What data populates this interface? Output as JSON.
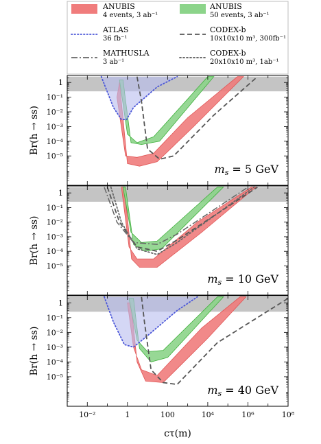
{
  "chart_data": [
    {
      "type": "line",
      "panel": "top",
      "annotation": "m_s = 5 GeV",
      "annotation_parts": {
        "var": "m",
        "sub": "s",
        "rest": " = 5 GeV"
      },
      "ylabel": "Br(h → ss)",
      "xscale": "log",
      "yscale": "log",
      "xlim": [
        0.001,
        100000000
      ],
      "ylim": [
        1e-07,
        3
      ],
      "excluded_band": [
        0.25,
        2.5
      ],
      "series": [
        {
          "name": "ANUBIS 4 events, 3 ab⁻¹",
          "kind": "band",
          "upper": [
            [
              0.3,
              0.1
            ],
            [
              0.8,
              1e-05
            ],
            [
              3,
              8e-06
            ],
            [
              20,
              1.5e-05
            ],
            [
              1000,
              0.004
            ],
            [
              300000,
              2.5
            ]
          ],
          "lower": [
            [
              0.4,
              1
            ],
            [
              1,
              3e-06
            ],
            [
              4,
              2e-06
            ],
            [
              30,
              4e-06
            ],
            [
              2000,
              0.001
            ],
            [
              600000,
              2.5
            ]
          ]
        },
        {
          "name": "ANUBIS 50 events, 3 ab⁻¹",
          "kind": "band",
          "upper": [
            [
              0.4,
              1.5
            ],
            [
              1,
              0.0003
            ],
            [
              3,
              8e-05
            ],
            [
              20,
              0.0002
            ],
            [
              10000,
              2.5
            ]
          ],
          "lower": [
            [
              0.6,
              1.5
            ],
            [
              1.5,
              8e-05
            ],
            [
              5,
              6e-05
            ],
            [
              40,
              0.0001
            ],
            [
              20000,
              2.5
            ]
          ]
        },
        {
          "name": "ATLAS 36 fb⁻¹",
          "kind": "dotted",
          "points": [
            [
              0.05,
              2.5
            ],
            [
              0.2,
              0.02
            ],
            [
              0.5,
              0.003
            ],
            [
              0.9,
              0.003
            ],
            [
              2,
              0.02
            ],
            [
              30,
              0.5
            ],
            [
              300,
              2.5
            ]
          ]
        },
        {
          "name": "CODEX-b 10x10x10 m³, 300fb⁻¹",
          "kind": "dashed",
          "points": [
            [
              3,
              2.5
            ],
            [
              5,
              0.05
            ],
            [
              10,
              3e-05
            ],
            [
              40,
              6e-06
            ],
            [
              200,
              1e-05
            ],
            [
              20000,
              0.006
            ],
            [
              3000000,
              2.5
            ]
          ]
        }
      ]
    },
    {
      "type": "line",
      "panel": "middle",
      "annotation": "m_s = 10 GeV",
      "annotation_parts": {
        "var": "m",
        "sub": "s",
        "rest": " = 10 GeV"
      },
      "ylabel": "Br(h → ss)",
      "xscale": "log",
      "yscale": "log",
      "xlim": [
        0.001,
        100000000
      ],
      "ylim": [
        1e-07,
        3
      ],
      "excluded_band": [
        0.25,
        2.5
      ],
      "series": [
        {
          "name": "ANUBIS 4 events, 3 ab⁻¹",
          "kind": "band",
          "upper": [
            [
              0.5,
              2.5
            ],
            [
              1.2,
              0.0002
            ],
            [
              3,
              3e-05
            ],
            [
              20,
              3e-05
            ],
            [
              3000,
              0.01
            ],
            [
              1500000,
              2.5
            ]
          ],
          "lower": [
            [
              0.7,
              2.5
            ],
            [
              1.6,
              3e-05
            ],
            [
              4,
              8e-06
            ],
            [
              30,
              8e-06
            ],
            [
              5000,
              0.002
            ],
            [
              2500000,
              2.5
            ]
          ]
        },
        {
          "name": "ANUBIS 50 events, 3 ab⁻¹",
          "kind": "band",
          "upper": [
            [
              0.6,
              2.5
            ],
            [
              1.5,
              0.002
            ],
            [
              5,
              0.0004
            ],
            [
              30,
              0.0005
            ],
            [
              30000,
              2.5
            ]
          ],
          "lower": [
            [
              0.8,
              2.5
            ],
            [
              2,
              0.0003
            ],
            [
              7,
              0.0001
            ],
            [
              50,
              0.00015
            ],
            [
              60000,
              2.5
            ]
          ]
        },
        {
          "name": "MATHUSLA 3 ab⁻¹",
          "kind": "dashdot",
          "points": [
            [
              0.07,
              2.5
            ],
            [
              0.3,
              0.01
            ],
            [
              2,
              0.0004
            ],
            [
              30,
              0.0003
            ],
            [
              300,
              0.0015
            ],
            [
              1000000,
              2.5
            ]
          ]
        },
        {
          "name": "CODEX-b 10x10x10 m³, 300fb⁻¹",
          "kind": "dashed",
          "points": [
            [
              0.1,
              2.5
            ],
            [
              0.4,
              0.01
            ],
            [
              3,
              0.0002
            ],
            [
              30,
              0.0001
            ],
            [
              300,
              0.0006
            ],
            [
              3000000,
              2.5
            ]
          ]
        },
        {
          "name": "CODEX-b 20x10x10 m³, 1ab⁻¹",
          "kind": "dotted-gray",
          "points": [
            [
              0.15,
              2.5
            ],
            [
              0.5,
              0.01
            ],
            [
              3,
              0.00015
            ],
            [
              30,
              6e-05
            ],
            [
              300,
              0.0004
            ],
            [
              2000000,
              2.5
            ]
          ]
        }
      ]
    },
    {
      "type": "line",
      "panel": "bottom",
      "annotation": "m_s = 40 GeV",
      "annotation_parts": {
        "var": "m",
        "sub": "s",
        "rest": " = 40 GeV"
      },
      "ylabel": "Br(h → ss)",
      "xlabel": "cτ(m)",
      "xscale": "log",
      "yscale": "log",
      "xlim": [
        0.001,
        100000000
      ],
      "ylim": [
        1e-07,
        3
      ],
      "xticks": [
        {
          "v": 0.01,
          "label": "10⁻²"
        },
        {
          "v": 1,
          "label": "1"
        },
        {
          "v": 100,
          "label": "100"
        },
        {
          "v": 10000,
          "label": "10⁴"
        },
        {
          "v": 1000000,
          "label": "10⁶"
        },
        {
          "v": 100000000,
          "label": "10⁸"
        }
      ],
      "excluded_band": [
        0.25,
        2.5
      ],
      "series": [
        {
          "name": "ANUBIS 4 events, 3 ab⁻¹",
          "kind": "band",
          "upper": [
            [
              1,
              1
            ],
            [
              2,
              0.001
            ],
            [
              5,
              3e-05
            ],
            [
              30,
              1.2e-05
            ],
            [
              5000,
              0.02
            ],
            [
              400000,
              2.5
            ]
          ],
          "lower": [
            [
              1.5,
              1
            ],
            [
              3,
              0.0001
            ],
            [
              8,
              5e-06
            ],
            [
              60,
              4e-06
            ],
            [
              10000,
              0.004
            ],
            [
              800000,
              2.5
            ]
          ]
        },
        {
          "name": "ANUBIS 50 events, 3 ab⁻¹",
          "kind": "band",
          "upper": [
            [
              1.2,
              2
            ],
            [
              3,
              0.003
            ],
            [
              10,
              0.0005
            ],
            [
              60,
              0.0006
            ],
            [
              30000,
              2.5
            ]
          ],
          "lower": [
            [
              2,
              2
            ],
            [
              4,
              0.0008
            ],
            [
              15,
              0.0001
            ],
            [
              100,
              0.0002
            ],
            [
              60000,
              2.5
            ]
          ]
        },
        {
          "name": "ATLAS 36 fb⁻¹",
          "kind": "dotted",
          "points": [
            [
              0.07,
              2.5
            ],
            [
              0.2,
              0.05
            ],
            [
              0.7,
              0.0015
            ],
            [
              2,
              0.001
            ],
            [
              10,
              0.006
            ],
            [
              300,
              0.3
            ],
            [
              3000,
              2.5
            ]
          ]
        },
        {
          "name": "CODEX-b 10x10x10 m³, 300fb⁻¹",
          "kind": "dashed",
          "points": [
            [
              5,
              2.5
            ],
            [
              7,
              0.05
            ],
            [
              15,
              3e-05
            ],
            [
              60,
              4e-06
            ],
            [
              300,
              3e-06
            ],
            [
              30000,
              0.002
            ],
            [
              100000000,
              2
            ]
          ]
        }
      ]
    }
  ],
  "legend": [
    {
      "key": "anubis4",
      "line1": "ANUBIS",
      "line2": "4 events, 3 ab⁻¹",
      "color": "#f07c7c",
      "style": "band"
    },
    {
      "key": "anubis50",
      "line1": "ANUBIS",
      "line2": "50 events, 3 ab⁻¹",
      "color": "#8cd48a",
      "style": "band"
    },
    {
      "key": "atlas",
      "line1": "ATLAS",
      "line2": "36 fb⁻¹",
      "color": "#4a56d8",
      "style": "dotted"
    },
    {
      "key": "codexb1",
      "line1": "CODEX-b",
      "line2": "10x10x10 m³, 300fb⁻¹",
      "color": "#555555",
      "style": "dashed"
    },
    {
      "key": "mathusla",
      "line1": "MATHUSLA",
      "line2": "3 ab⁻¹",
      "color": "#666666",
      "style": "dashdot"
    },
    {
      "key": "codexb2",
      "line1": "CODEX-b",
      "line2": "20x10x10 m³, 1ab⁻¹",
      "color": "#555555",
      "style": "dotted-gray"
    }
  ],
  "colors": {
    "anubis4_fill": "#f07c7c",
    "anubis4_edge": "#e05555",
    "anubis50_fill": "#8cd48a",
    "anubis50_edge": "#3fb03c",
    "atlas": "#4a56d8",
    "atlas_fill": "#b8bcee",
    "codex": "#555555",
    "excluded": "#c4c4c4"
  },
  "yticks": [
    {
      "v": 1,
      "label": "1"
    },
    {
      "v": 0.1,
      "label": "10⁻¹"
    },
    {
      "v": 0.01,
      "label": "10⁻²"
    },
    {
      "v": 0.001,
      "label": "10⁻³"
    },
    {
      "v": 0.0001,
      "label": "10⁻⁴"
    },
    {
      "v": 1e-05,
      "label": "10⁻⁵"
    }
  ]
}
